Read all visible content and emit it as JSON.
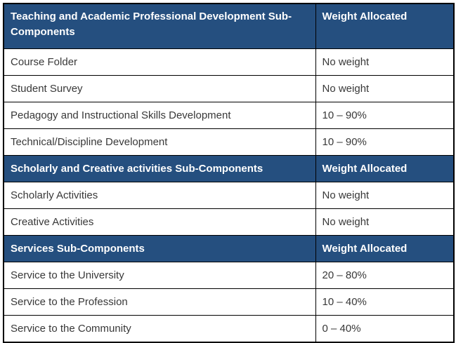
{
  "table": {
    "colors": {
      "header_bg": "#254f7f",
      "header_text": "#ffffff",
      "body_text": "#383838",
      "border": "#000000"
    },
    "sections": [
      {
        "header": "Teaching and Academic Professional Development Sub-Components",
        "weight_label": "Weight Allocated",
        "rows": [
          {
            "label": "Course Folder",
            "weight": "No weight"
          },
          {
            "label": "Student Survey",
            "weight": "No weight"
          },
          {
            "label": "Pedagogy and Instructional Skills Development",
            "weight": "10 – 90%"
          },
          {
            "label": "Technical/Discipline Development",
            "weight": "10 – 90%"
          }
        ]
      },
      {
        "header": "Scholarly and Creative activities Sub-Components",
        "weight_label": "Weight Allocated",
        "rows": [
          {
            "label": "Scholarly Activities",
            "weight": "No weight"
          },
          {
            "label": "Creative Activities",
            "weight": "No weight"
          }
        ]
      },
      {
        "header": "Services Sub-Components",
        "weight_label": "Weight Allocated",
        "rows": [
          {
            "label": "Service to the University",
            "weight": "20 – 80%"
          },
          {
            "label": "Service to the Profession",
            "weight": "10 – 40%"
          },
          {
            "label": "Service to the Community",
            "weight": "0 – 40%"
          }
        ]
      }
    ]
  }
}
